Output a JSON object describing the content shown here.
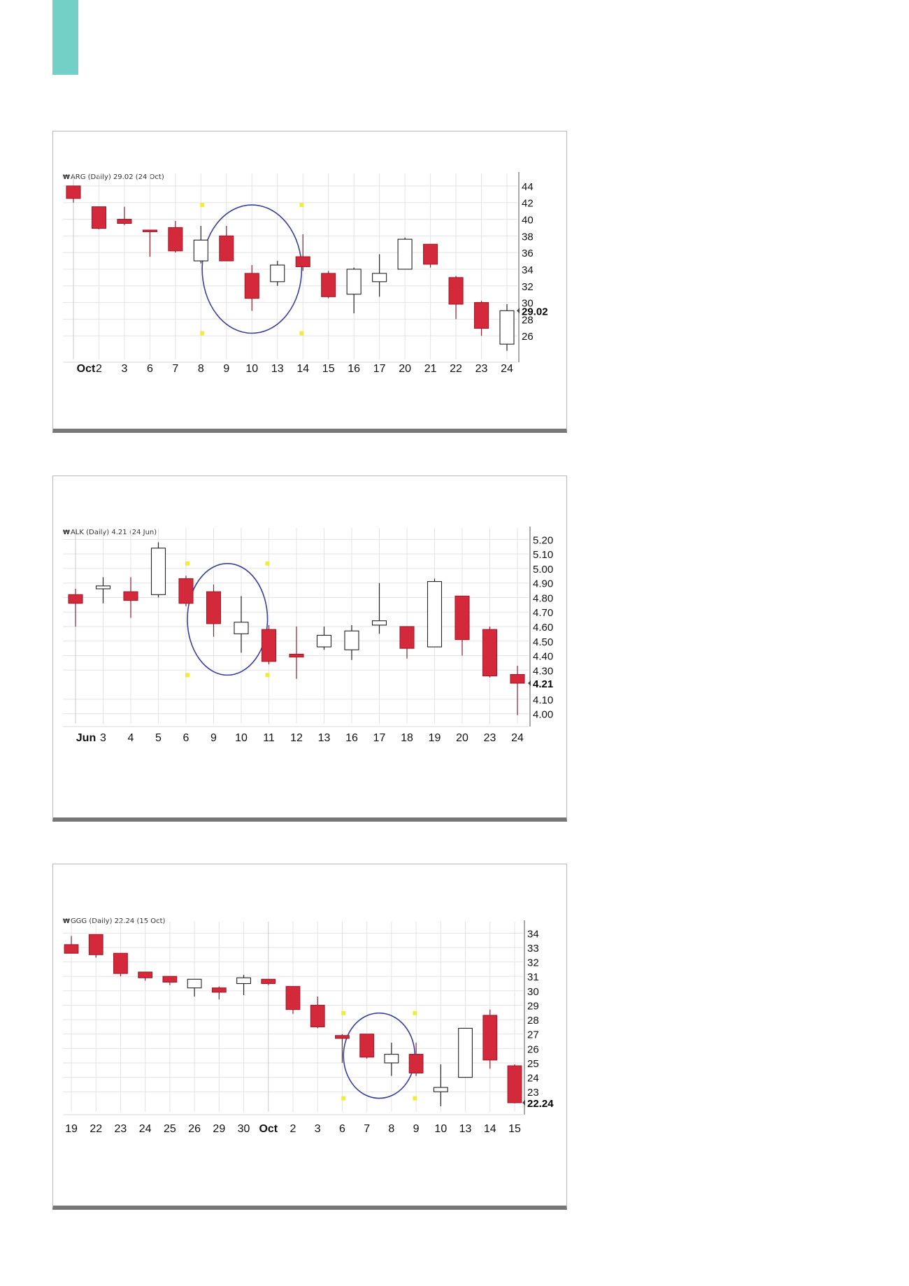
{
  "accent_color": "#72d0c6",
  "colors": {
    "down": "#d4293b",
    "up": "#ffffff",
    "outline": "#222222",
    "circle": "#3a3f9c",
    "marker": "#f0ec3c",
    "grid": "#e3e3e3"
  },
  "charts": [
    {
      "title": "ARG (Daily) 29.02 (24 Oct)"
    },
    {
      "title": "ALK (Daily) 4.21 (24 Jun)"
    },
    {
      "title": "GGG (Daily) 22.24 (15 Oct)"
    }
  ],
  "chart_data": [
    {
      "type": "candlestick",
      "title": "ARG (Daily) 29.02 (24 Oct)",
      "categories": [
        "Oct",
        "2",
        "3",
        "6",
        "7",
        "8",
        "9",
        "10",
        "13",
        "14",
        "15",
        "16",
        "17",
        "20",
        "21",
        "22",
        "23",
        "24"
      ],
      "open": [
        44.0,
        41.5,
        40.0,
        38.7,
        39.0,
        35.0,
        38.0,
        33.5,
        32.5,
        35.5,
        33.5,
        31.0,
        32.5,
        34.0,
        37.0,
        33.0,
        30.0,
        25.0
      ],
      "high": [
        44.0,
        41.5,
        41.5,
        38.7,
        39.8,
        39.2,
        39.2,
        34.5,
        35.0,
        38.2,
        33.8,
        34.2,
        35.8,
        37.8,
        37.0,
        33.2,
        30.2,
        29.8
      ],
      "low": [
        42.0,
        38.8,
        39.3,
        35.5,
        36.0,
        34.7,
        35.0,
        29.0,
        32.0,
        33.8,
        30.5,
        28.7,
        30.7,
        34.0,
        34.2,
        28.0,
        26.0,
        24.2
      ],
      "close": [
        42.5,
        38.9,
        39.5,
        38.5,
        36.2,
        37.5,
        35.0,
        30.5,
        34.5,
        34.3,
        30.7,
        34.0,
        33.5,
        37.6,
        34.6,
        29.8,
        26.9,
        29.02
      ],
      "y_ticks": [
        "44",
        "42",
        "40",
        "38",
        "36",
        "34",
        "32",
        "30",
        "28",
        "26"
      ],
      "last_value": "29.02",
      "ylim": [
        23.5,
        45
      ],
      "grid": true,
      "highlight_range": [
        "9",
        "13"
      ]
    },
    {
      "type": "candlestick",
      "title": "ALK (Daily) 4.21 (24 Jun)",
      "categories": [
        "Jun",
        "3",
        "4",
        "5",
        "6",
        "9",
        "10",
        "11",
        "12",
        "13",
        "16",
        "17",
        "18",
        "19",
        "20",
        "23",
        "24"
      ],
      "open": [
        4.82,
        4.86,
        4.84,
        4.82,
        4.93,
        4.84,
        4.55,
        4.58,
        4.41,
        4.46,
        4.44,
        4.61,
        4.6,
        4.46,
        4.81,
        4.58,
        4.27
      ],
      "high": [
        4.86,
        4.94,
        4.94,
        5.18,
        4.95,
        4.89,
        4.81,
        4.61,
        4.6,
        4.6,
        4.61,
        4.9,
        4.6,
        4.93,
        4.81,
        4.6,
        4.33
      ],
      "low": [
        4.6,
        4.76,
        4.66,
        4.8,
        4.74,
        4.53,
        4.42,
        4.34,
        4.24,
        4.44,
        4.37,
        4.55,
        4.38,
        4.46,
        4.4,
        4.25,
        3.99
      ],
      "close": [
        4.76,
        4.88,
        4.78,
        5.14,
        4.76,
        4.62,
        4.63,
        4.36,
        4.39,
        4.54,
        4.57,
        4.64,
        4.45,
        4.91,
        4.51,
        4.26,
        4.21
      ],
      "y_ticks": [
        "5.20",
        "5.10",
        "5.00",
        "4.90",
        "4.80",
        "4.70",
        "4.60",
        "4.50",
        "4.40",
        "4.30",
        "4.10",
        "4.00"
      ],
      "last_value": "4.21",
      "ylim": [
        3.95,
        5.25
      ],
      "grid": true,
      "highlight_range": [
        "9",
        "10"
      ]
    },
    {
      "type": "candlestick",
      "title": "GGG (Daily) 22.24 (15 Oct)",
      "categories": [
        "19",
        "22",
        "23",
        "24",
        "25",
        "26",
        "29",
        "30",
        "Oct",
        "2",
        "3",
        "6",
        "7",
        "8",
        "9",
        "10",
        "13",
        "14",
        "15"
      ],
      "open": [
        33.2,
        33.9,
        32.6,
        31.3,
        31.0,
        30.2,
        30.2,
        30.5,
        30.8,
        30.3,
        29.0,
        26.9,
        27.0,
        25.0,
        25.6,
        23.0,
        24.0,
        28.3,
        24.8
      ],
      "high": [
        33.8,
        33.9,
        32.6,
        31.3,
        31.0,
        30.8,
        30.3,
        31.1,
        30.8,
        30.3,
        29.6,
        27.0,
        27.0,
        26.4,
        26.4,
        24.9,
        27.4,
        28.7,
        24.9
      ],
      "low": [
        32.6,
        32.3,
        31.0,
        30.7,
        30.4,
        29.6,
        29.4,
        29.7,
        30.4,
        28.4,
        27.4,
        25.0,
        25.3,
        24.1,
        24.1,
        22.0,
        24.0,
        24.6,
        22.2
      ],
      "close": [
        32.6,
        32.5,
        31.2,
        30.9,
        30.6,
        30.8,
        29.9,
        30.9,
        30.5,
        28.7,
        27.5,
        26.7,
        25.4,
        25.6,
        24.3,
        23.3,
        27.4,
        25.2,
        22.24
      ],
      "y_ticks": [
        "34",
        "33",
        "32",
        "31",
        "30",
        "29",
        "28",
        "27",
        "26",
        "25",
        "24",
        "23"
      ],
      "last_value": "22.24",
      "ylim": [
        21.8,
        34.5
      ],
      "grid": true,
      "highlight_range": [
        "7",
        "8"
      ]
    }
  ]
}
